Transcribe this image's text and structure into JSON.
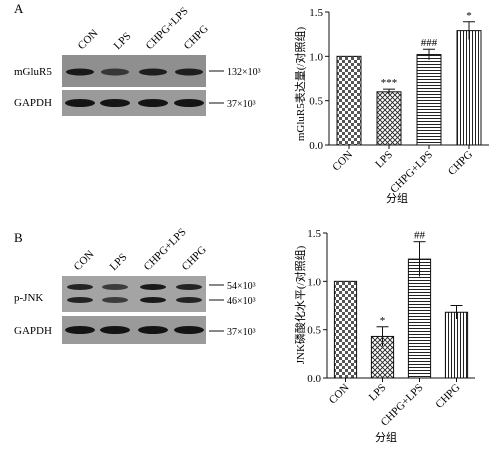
{
  "panels": [
    {
      "letter": "A",
      "blot": {
        "lanes": [
          "CON",
          "LPS",
          "CHPG+LPS",
          "CHPG"
        ],
        "rows": [
          {
            "label": "mGluR5",
            "markers": [
              "132×10³"
            ],
            "intensity": [
              0.85,
              0.55,
              0.8,
              0.8
            ]
          },
          {
            "label": "GAPDH",
            "markers": [
              "37×10³"
            ],
            "intensity": [
              0.9,
              0.9,
              0.9,
              0.9
            ]
          }
        ]
      }
    },
    {
      "letter": "B",
      "blot": {
        "lanes": [
          "CON",
          "LPS",
          "CHPG+LPS",
          "CHPG"
        ],
        "rows": [
          {
            "label": "p-JNK",
            "markers": [
              "54×10³",
              "46×10³"
            ],
            "intensity": [
              0.75,
              0.5,
              0.85,
              0.75
            ]
          },
          {
            "label": "GAPDH",
            "markers": [
              "37×10³"
            ],
            "intensity": [
              0.9,
              0.9,
              0.9,
              0.9
            ]
          }
        ]
      }
    }
  ],
  "chart_data": [
    {
      "type": "bar",
      "categories": [
        "CON",
        "LPS",
        "CHPG+LPS",
        "CHPG"
      ],
      "values": [
        1.0,
        0.6,
        1.02,
        1.29
      ],
      "errors": [
        0.0,
        0.03,
        0.06,
        0.1
      ],
      "annotations": [
        "",
        "***",
        "###",
        "*"
      ],
      "xlabel": "分组",
      "ylabel": "mGluR5表达量(/对照组)",
      "ylim": [
        0,
        1.5
      ],
      "yticks": [
        "0.0",
        "0.5",
        "1.0",
        "1.5"
      ]
    },
    {
      "type": "bar",
      "categories": [
        "CON",
        "LPS",
        "CHPG+LPS",
        "CHPG"
      ],
      "values": [
        1.0,
        0.43,
        1.23,
        0.68
      ],
      "errors": [
        0.0,
        0.1,
        0.18,
        0.07
      ],
      "annotations": [
        "",
        "*",
        "##",
        ""
      ],
      "xlabel": "分组",
      "ylabel": "JNK磷酸化水平(/对照组)",
      "ylim": [
        0,
        1.5
      ],
      "yticks": [
        "0.0",
        "0.5",
        "1.0",
        "1.5"
      ]
    }
  ]
}
